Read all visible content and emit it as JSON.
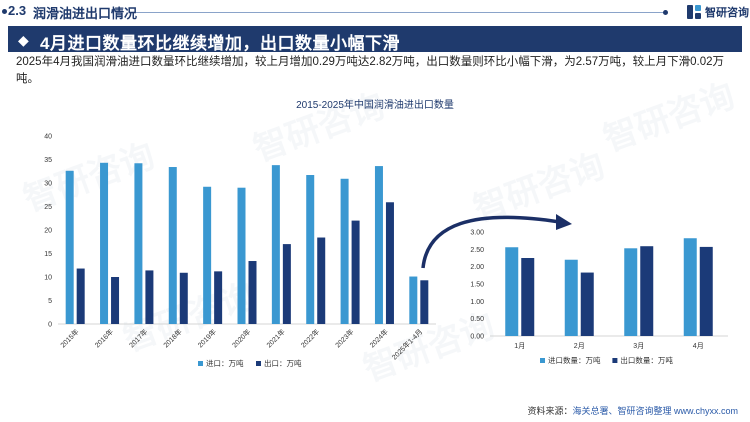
{
  "header": {
    "section_number": "2.3",
    "section_title": "润滑油进出口情况",
    "brand": "智研咨询"
  },
  "banner": {
    "title": "4月进口数量环比继续增加，出口数量小幅下滑"
  },
  "description": "2025年4月我国润滑油进口数量环比继续增加，较上月增加0.29万吨达2.82万吨，出口数量则环比小幅下滑，为2.57万吨，较上月下滑0.02万吨。",
  "watermark": "智研咨询",
  "source": {
    "label": "资料来源：",
    "text": "海关总署、智研咨询整理 www.chyxx.com"
  },
  "colors": {
    "import": "#3a98d1",
    "export": "#1b3a78",
    "arrow": "#1b2f66",
    "banner": "#1f3a6d"
  },
  "chart_data": [
    {
      "type": "bar",
      "title": "2015-2025年中国润滑油进出口数量",
      "categories": [
        "2015年",
        "2016年",
        "2017年",
        "2018年",
        "2019年",
        "2020年",
        "2021年",
        "2022年",
        "2023年",
        "2024年",
        "2025年1-4月"
      ],
      "series": [
        {
          "name": "进口：万吨",
          "values": [
            32.6,
            34.3,
            34.2,
            33.4,
            29.2,
            29.0,
            33.8,
            31.7,
            30.9,
            33.6,
            10.1
          ]
        },
        {
          "name": "出口：万吨",
          "values": [
            11.8,
            10.0,
            11.4,
            10.9,
            11.2,
            13.4,
            17.0,
            18.4,
            22.0,
            25.9,
            9.3
          ]
        }
      ],
      "ylim": [
        0,
        40
      ],
      "yticks": [
        "0",
        "5",
        "10",
        "15",
        "20",
        "25",
        "30",
        "35",
        "40"
      ],
      "legend": "bottom"
    },
    {
      "type": "bar",
      "categories": [
        "1月",
        "2月",
        "3月",
        "4月"
      ],
      "series": [
        {
          "name": "进口数量：万吨",
          "values": [
            2.56,
            2.2,
            2.53,
            2.82
          ]
        },
        {
          "name": "出口数量：万吨",
          "values": [
            2.25,
            1.83,
            2.59,
            2.57
          ]
        }
      ],
      "ylim": [
        0,
        3.0
      ],
      "yticks": [
        "0.00",
        "0.50",
        "1.00",
        "1.50",
        "2.00",
        "2.50",
        "3.00"
      ],
      "legend": "bottom"
    }
  ]
}
